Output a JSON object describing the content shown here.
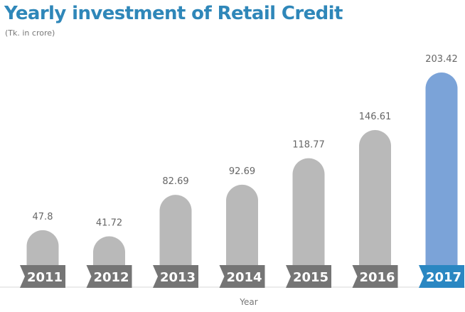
{
  "chart_data": {
    "type": "bar",
    "title": "Yearly investment of Retail Credit",
    "subtitle": "(Tk. in crore)",
    "xlabel": "Year",
    "ylabel": "",
    "categories": [
      "2011",
      "2012",
      "2013",
      "2014",
      "2015",
      "2016",
      "2017"
    ],
    "values": [
      47.8,
      41.72,
      82.69,
      92.69,
      118.77,
      146.61,
      203.42
    ],
    "value_labels": [
      "47.8",
      "41.72",
      "82.69",
      "92.69",
      "118.77",
      "146.61",
      "203.42"
    ],
    "highlight_index": 6,
    "ylim": [
      0,
      203.42
    ],
    "grid": false,
    "legend": "none",
    "colors": {
      "bar": "#b9b9b9",
      "bar_highlight": "#7ba3d8",
      "tick_box": "#757575",
      "tick_box_highlight": "#2a87c2",
      "title": "#2f87b9"
    }
  }
}
